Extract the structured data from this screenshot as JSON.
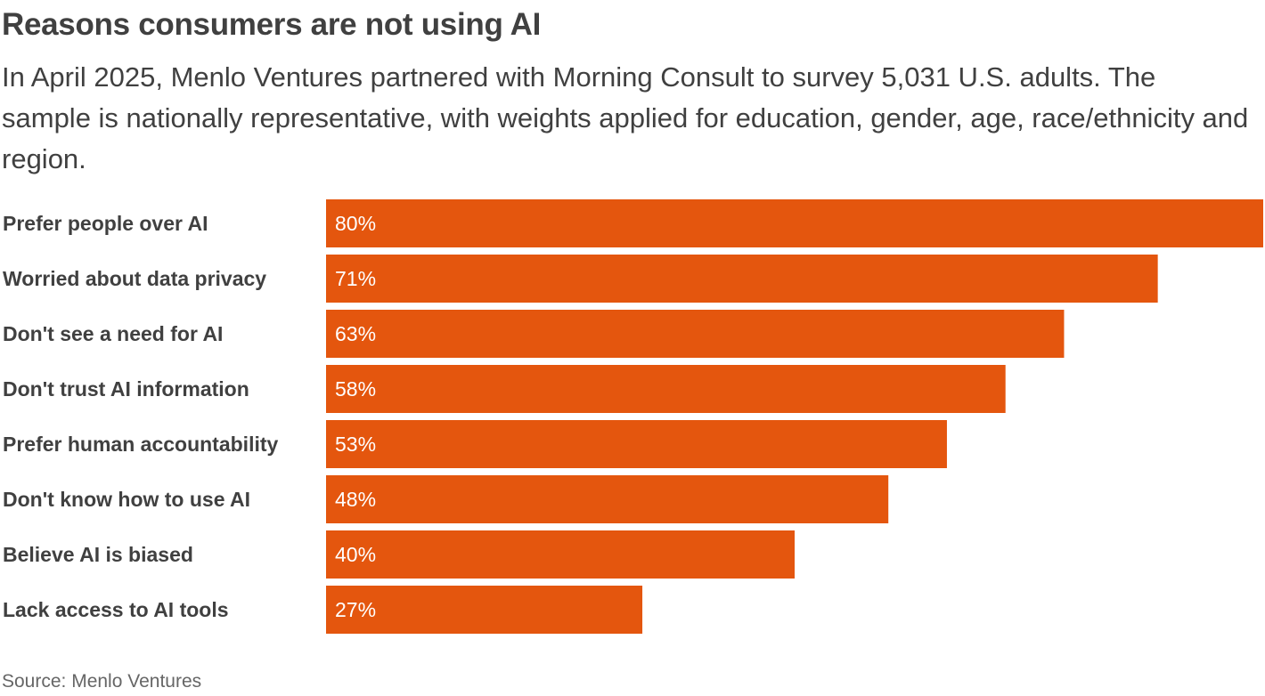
{
  "chart_data": {
    "type": "bar",
    "orientation": "horizontal",
    "title": "Reasons consumers are not using AI",
    "subtitle": "In April 2025, Menlo Ventures partnered with Morning Consult to survey 5,031 U.S. adults. The sample is nationally representative, with weights applied for education, gender, age, race/ethnicity and region.",
    "categories": [
      "Prefer people over AI",
      "Worried about data privacy",
      "Don't see a need for AI",
      "Don't trust AI information",
      "Prefer human accountability",
      "Don't know how to use AI",
      "Believe AI is biased",
      "Lack access to AI tools"
    ],
    "values": [
      80,
      71,
      63,
      58,
      53,
      48,
      40,
      27
    ],
    "value_suffix": "%",
    "xlim": [
      0,
      80
    ],
    "grid": false,
    "bar_color": "#e4560e",
    "source": "Source: Menlo Ventures"
  }
}
